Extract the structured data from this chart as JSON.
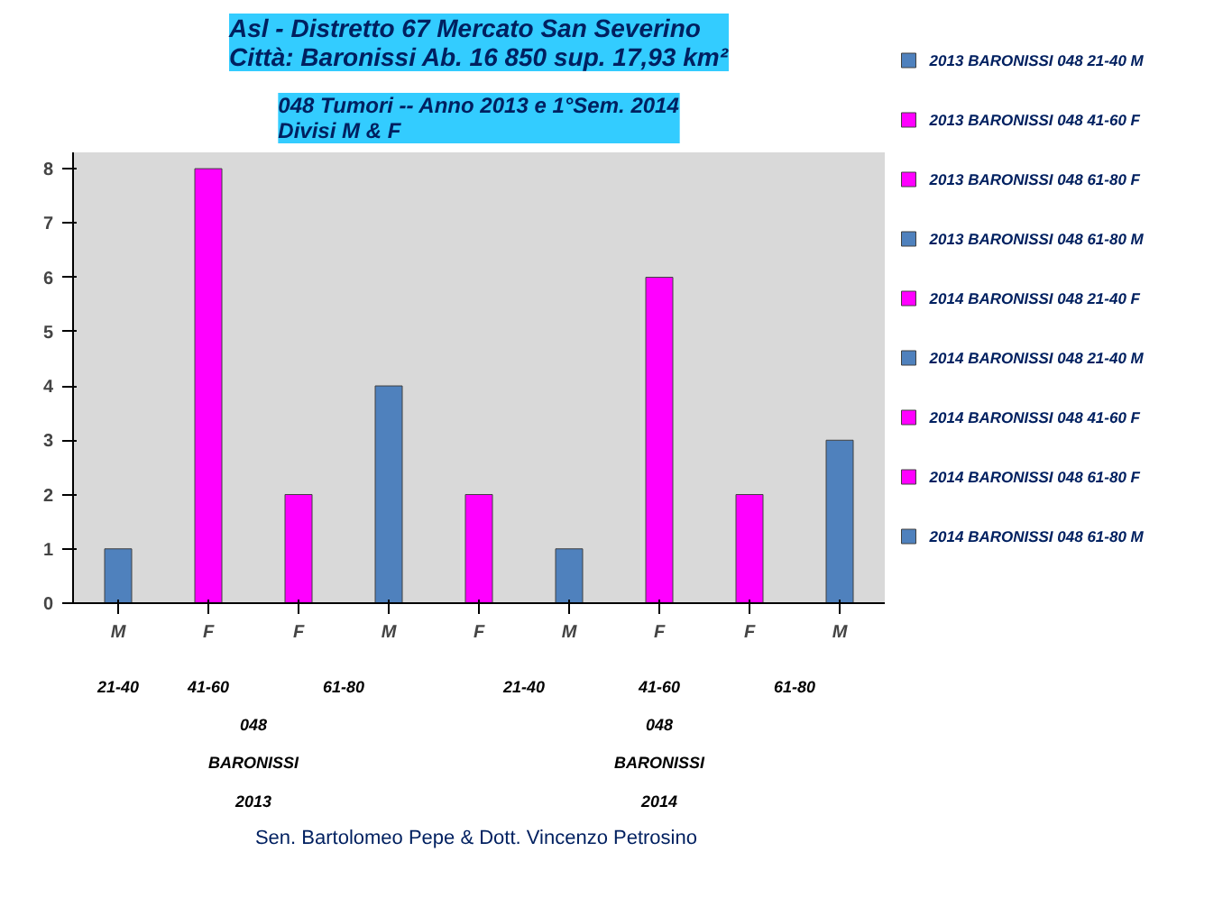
{
  "chart_data": {
    "type": "bar",
    "title": "Asl - Distretto 67 Mercato San Severino\nCittà: Baronissi Ab. 16 850 sup. 17,93 km²",
    "subtitle": "048 Tumori -- Anno 2013 e 1°Sem. 2014\nDivisi M & F",
    "categories": [
      "M",
      "F",
      "F",
      "M",
      "F",
      "M",
      "F",
      "F",
      "M"
    ],
    "series": [
      {
        "name": "2013 BARONISSI 048 21-40 M",
        "color": "#4f81bd",
        "values": [
          1,
          null,
          null,
          null,
          null,
          null,
          null,
          null,
          null
        ]
      },
      {
        "name": "2013 BARONISSI 048 41-60 F",
        "color": "#ff00ff",
        "values": [
          null,
          8,
          null,
          null,
          null,
          null,
          null,
          null,
          null
        ]
      },
      {
        "name": "2013 BARONISSI 048 61-80 F",
        "color": "#ff00ff",
        "values": [
          null,
          null,
          2,
          null,
          null,
          null,
          null,
          null,
          null
        ]
      },
      {
        "name": "2013 BARONISSI 048 61-80 M",
        "color": "#4f81bd",
        "values": [
          null,
          null,
          null,
          4,
          null,
          null,
          null,
          null,
          null
        ]
      },
      {
        "name": "2014 BARONISSI 048 21-40 F",
        "color": "#ff00ff",
        "values": [
          null,
          null,
          null,
          null,
          2,
          null,
          null,
          null,
          null
        ]
      },
      {
        "name": "2014 BARONISSI 048 21-40 M",
        "color": "#4f81bd",
        "values": [
          null,
          null,
          null,
          null,
          null,
          1,
          null,
          null,
          null
        ]
      },
      {
        "name": "2014 BARONISSI 048 41-60 F",
        "color": "#ff00ff",
        "values": [
          null,
          null,
          null,
          null,
          null,
          null,
          6,
          null,
          null
        ]
      },
      {
        "name": "2014 BARONISSI 048 61-80 F",
        "color": "#ff00ff",
        "values": [
          null,
          null,
          null,
          null,
          null,
          null,
          null,
          2,
          null
        ]
      },
      {
        "name": "2014 BARONISSI 048 61-80 M",
        "color": "#4f81bd",
        "values": [
          null,
          null,
          null,
          null,
          null,
          null,
          null,
          null,
          3
        ]
      }
    ],
    "ylim": [
      0,
      8.3
    ],
    "yticks": [
      0,
      1,
      2,
      3,
      4,
      5,
      6,
      7,
      8
    ],
    "legend": "right",
    "annotations": [
      "21-40",
      "41-60",
      "61-80",
      "21-40",
      "41-60",
      "61-80",
      "048",
      "BARONISSI",
      "2013",
      "048",
      "BARONISSI",
      "2014",
      "Sen. Bartolomeo Pepe &  Dott. Vincenzo Petrosino"
    ]
  }
}
